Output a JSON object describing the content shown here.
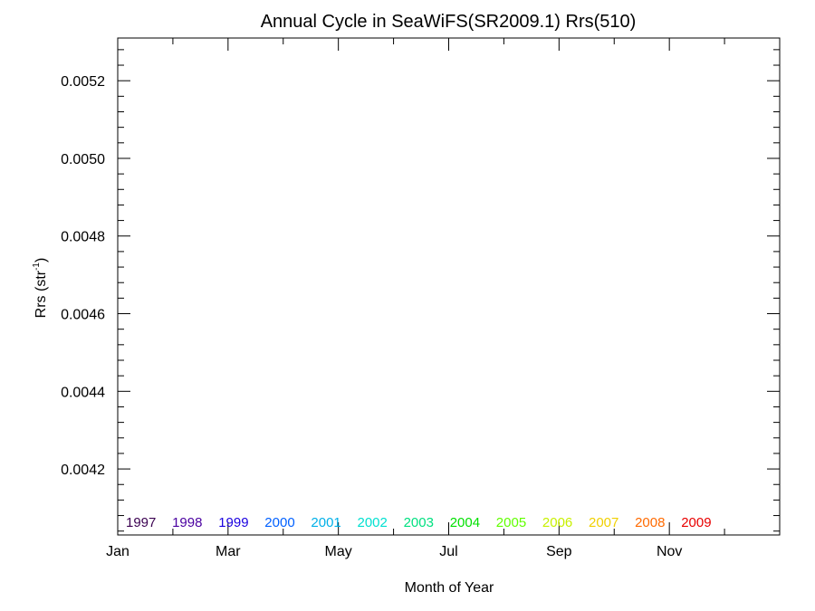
{
  "chart_data": {
    "type": "line",
    "title": "Annual Cycle in SeaWiFS(SR2009.1) Rrs(510)",
    "xlabel": "Month of Year",
    "ylabel": "Rrs (str",
    "ylabel_sup": "-1",
    "ylabel_close": ")",
    "xlim": [
      0,
      12
    ],
    "ylim": [
      0.00403,
      0.00531
    ],
    "x_tick_labels": [
      "Jan",
      "Mar",
      "May",
      "Jul",
      "Sep",
      "Nov"
    ],
    "x_tick_values": [
      0,
      2,
      4,
      6,
      8,
      10
    ],
    "x_minor_step": 1,
    "y_ticks": [
      0.0042,
      0.0044,
      0.0046,
      0.0048,
      0.005,
      0.0052
    ],
    "y_tick_labels": [
      "0.0042",
      "0.0044",
      "0.0046",
      "0.0048",
      "0.0050",
      "0.0052"
    ],
    "y_minor_step": 4e-05,
    "grid": false,
    "legend_position": "bottom",
    "series": [
      {
        "name": "1997",
        "color": "#3a0050",
        "values": []
      },
      {
        "name": "1998",
        "color": "#4a00a0",
        "values": []
      },
      {
        "name": "1999",
        "color": "#1a00e0",
        "values": []
      },
      {
        "name": "2000",
        "color": "#0060ff",
        "values": []
      },
      {
        "name": "2001",
        "color": "#00b0e8",
        "values": []
      },
      {
        "name": "2002",
        "color": "#00e0d0",
        "values": []
      },
      {
        "name": "2003",
        "color": "#00e080",
        "values": []
      },
      {
        "name": "2004",
        "color": "#00e000",
        "values": []
      },
      {
        "name": "2005",
        "color": "#60ff00",
        "values": []
      },
      {
        "name": "2006",
        "color": "#c8f000",
        "values": []
      },
      {
        "name": "2007",
        "color": "#f0d000",
        "values": []
      },
      {
        "name": "2008",
        "color": "#ff6a00",
        "values": []
      },
      {
        "name": "2009",
        "color": "#e80000",
        "values": []
      }
    ]
  }
}
